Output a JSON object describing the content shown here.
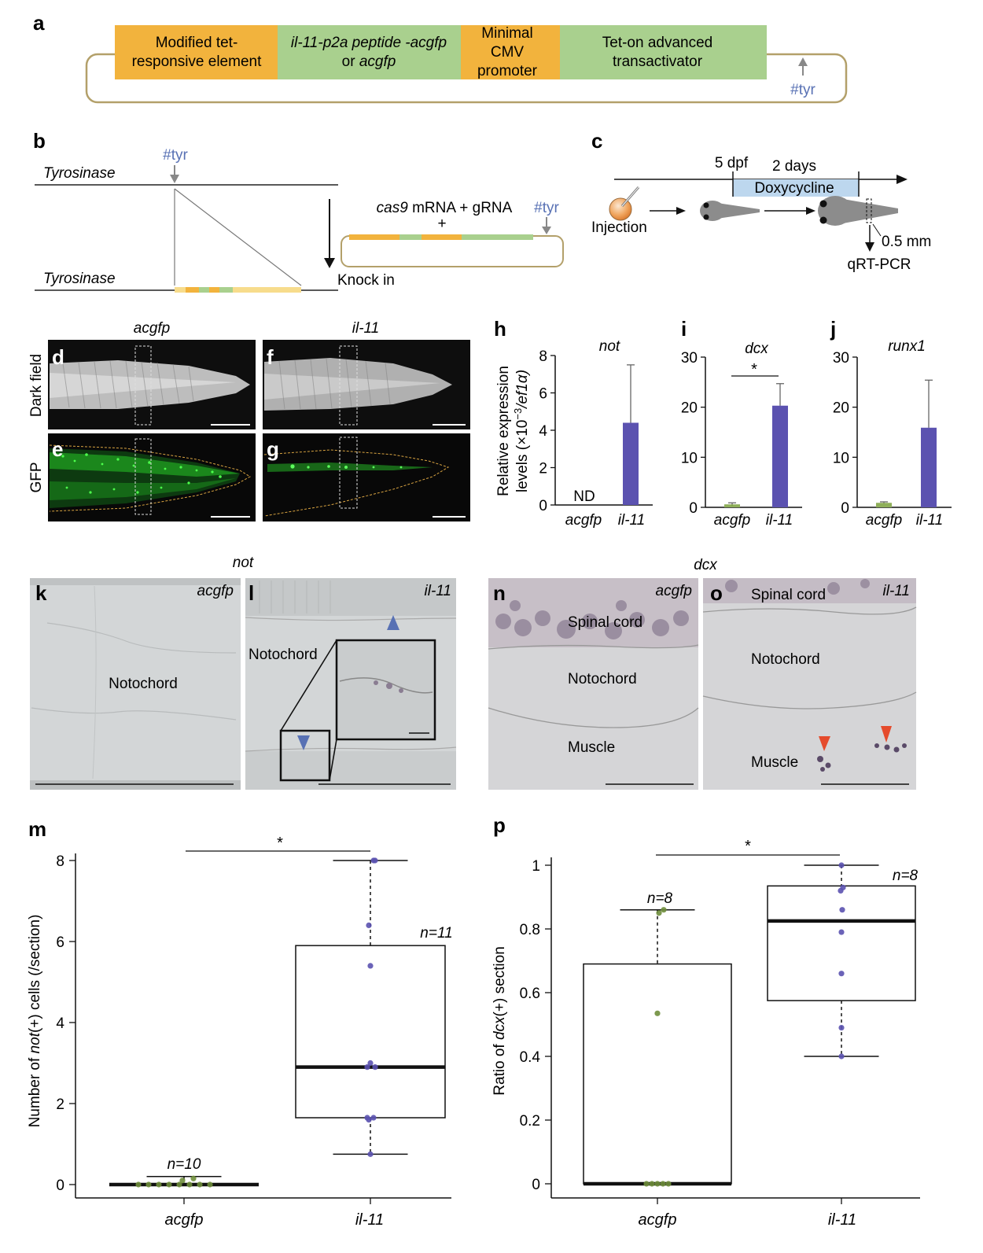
{
  "colors": {
    "orange": "#F2B33D",
    "green": "#A9D08E",
    "gold": "#B3A06A",
    "blue": "#5871B4",
    "purple": "#5B52B0",
    "olive": "#6F8E3C",
    "gfp": "#3BD23B"
  },
  "panel_letters": {
    "a": "a",
    "b": "b",
    "c": "c",
    "d": "d",
    "e": "e",
    "f": "f",
    "g": "g",
    "h": "h",
    "i": "i",
    "j": "j",
    "k": "k",
    "l": "l",
    "m": "m",
    "n": "n",
    "o": "o",
    "p": "p"
  },
  "panel_a": {
    "seg1_l1": "Modified tet-",
    "seg1_l2": "responsive element",
    "seg2_l1": "il-11-p2a peptide -acgfp",
    "seg2_l2_pre": "or ",
    "seg2_l2_it": "acgfp",
    "seg3_l1": "Minimal",
    "seg3_l2": "CMV",
    "seg3_l3": "promoter",
    "seg4_l1": "Tet-on advanced",
    "seg4_l2": "transactivator",
    "tyr": "#tyr"
  },
  "panel_b": {
    "tyrosinase_top": "Tyrosinase",
    "tyr_top": "#tyr",
    "tyrosinase_bottom": "Tyrosinase",
    "cas9": "cas9",
    "mrna": " mRNA + gRNA",
    "plus": "+",
    "tyr_right": "#tyr",
    "knockin": "Knock in"
  },
  "panel_c": {
    "dpf": "5 dpf",
    "days": "2 days",
    "doxy": "Doxycycline",
    "injection": "Injection",
    "mm": "0.5 mm",
    "qrt": "qRT-PCR"
  },
  "panel_dg": {
    "acgfp": "acgfp",
    "il11": "il-11",
    "dark_field": "Dark field",
    "gfp": "GFP"
  },
  "chart_data": [
    {
      "panel": "h",
      "type": "bar",
      "title": "not",
      "categories": [
        "acgfp",
        "il-11"
      ],
      "values": [
        0,
        4.4
      ],
      "errors": [
        0,
        3.1
      ],
      "annotations": [
        "ND",
        ""
      ],
      "ylim": [
        0,
        8
      ],
      "yticks": [
        0,
        2,
        4,
        6,
        8
      ],
      "ylabel_l1": "Relative expression",
      "ylabel_l2_pre": "levels (×10",
      "ylabel_sup": "−3",
      "ylabel_l2_post": "/ef1α)"
    },
    {
      "panel": "i",
      "type": "bar",
      "title": "dcx",
      "categories": [
        "acgfp",
        "il-11"
      ],
      "values": [
        0.6,
        20.3
      ],
      "errors": [
        0.3,
        4.4
      ],
      "ylim": [
        0,
        30
      ],
      "yticks": [
        0,
        10,
        20,
        30
      ],
      "significance": "*"
    },
    {
      "panel": "j",
      "type": "bar",
      "title": "runx1",
      "categories": [
        "acgfp",
        "il-11"
      ],
      "values": [
        0.9,
        15.9
      ],
      "errors": [
        0.2,
        9.5
      ],
      "ylim": [
        0,
        30
      ],
      "yticks": [
        0,
        10,
        20,
        30
      ]
    },
    {
      "panel": "m",
      "type": "box",
      "ylabel_pre": "Number of ",
      "ylabel_it": "not",
      "ylabel_post": "(+) cells (/section)",
      "categories": [
        "acgfp",
        "il-11"
      ],
      "ylim": [
        0,
        8
      ],
      "yticks": [
        0,
        2,
        4,
        6,
        8
      ],
      "significance": "*",
      "boxes": [
        {
          "q1": 0,
          "median": 0,
          "q3": 0,
          "whisker_low": 0,
          "whisker_high": 0.2,
          "n": "n=10"
        },
        {
          "q1": 1.65,
          "median": 2.9,
          "q3": 5.9,
          "whisker_low": 0.75,
          "whisker_high": 8,
          "n": "n=11"
        }
      ],
      "points": [
        [
          0,
          0,
          0,
          0,
          0,
          0,
          0,
          0,
          0.1,
          0.15
        ],
        [
          8,
          6.4,
          5.4,
          3,
          2.9,
          2.9,
          1.65,
          1.65,
          1.6,
          0.75,
          8
        ]
      ]
    },
    {
      "panel": "p",
      "type": "box",
      "ylabel_pre": "Ratio of ",
      "ylabel_it": "dcx",
      "ylabel_post": "(+) section",
      "categories": [
        "acgfp",
        "il-11"
      ],
      "ylim": [
        0,
        1
      ],
      "yticks": [
        0,
        0.2,
        0.4,
        0.6,
        0.8,
        1
      ],
      "ytick_labels": [
        "0",
        "0.2",
        "0.4",
        "0.6",
        "0.8",
        "1"
      ],
      "significance": "*",
      "boxes": [
        {
          "q1": 0,
          "median": 0,
          "q3": 0.69,
          "whisker_low": 0,
          "whisker_high": 0.86,
          "n": "n=8"
        },
        {
          "q1": 0.575,
          "median": 0.825,
          "q3": 0.935,
          "whisker_low": 0.4,
          "whisker_high": 1,
          "n": "n=8"
        }
      ],
      "points": [
        [
          0.86,
          0.85,
          0.535,
          0,
          0,
          0,
          0,
          0
        ],
        [
          1,
          0.93,
          0.92,
          0.86,
          0.79,
          0.66,
          0.49,
          0.4
        ]
      ]
    }
  ],
  "panel_kl": {
    "title": "not",
    "acgfp": "acgfp",
    "il11": "il-11",
    "notochord_k": "Notochord",
    "notochord_l": "Notochord"
  },
  "panel_no": {
    "title": "dcx",
    "acgfp": "acgfp",
    "il11": "il-11",
    "spinal_n": "Spinal cord",
    "notochord_n": "Notochord",
    "muscle_n": "Muscle",
    "spinal_o": "Spinal cord",
    "notochord_o": "Notochord",
    "muscle_o": "Muscle"
  }
}
